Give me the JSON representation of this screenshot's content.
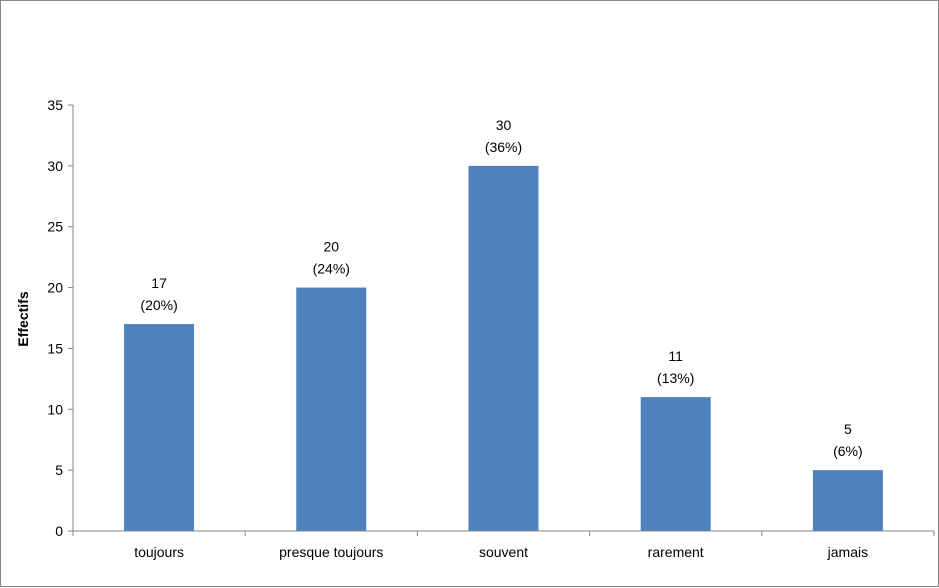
{
  "chart_data": {
    "type": "bar",
    "categories": [
      "toujours",
      "presque toujours",
      "souvent",
      "rarement",
      "jamais"
    ],
    "values": [
      17,
      20,
      30,
      11,
      5
    ],
    "data_labels": [
      {
        "count": "17",
        "percent": "(20%)"
      },
      {
        "count": "20",
        "percent": "(24%)"
      },
      {
        "count": "30",
        "percent": "(36%)"
      },
      {
        "count": "11",
        "percent": "(13%)"
      },
      {
        "count": "5",
        "percent": "(6%)"
      }
    ],
    "title": "",
    "xlabel": "",
    "ylabel": "Effectifs",
    "ylim": [
      0,
      35
    ],
    "yticks": [
      0,
      5,
      10,
      15,
      20,
      25,
      30,
      35
    ],
    "grid": false,
    "legend": "none",
    "bar_color": "#4f81bd",
    "axis_color": "#868686"
  }
}
